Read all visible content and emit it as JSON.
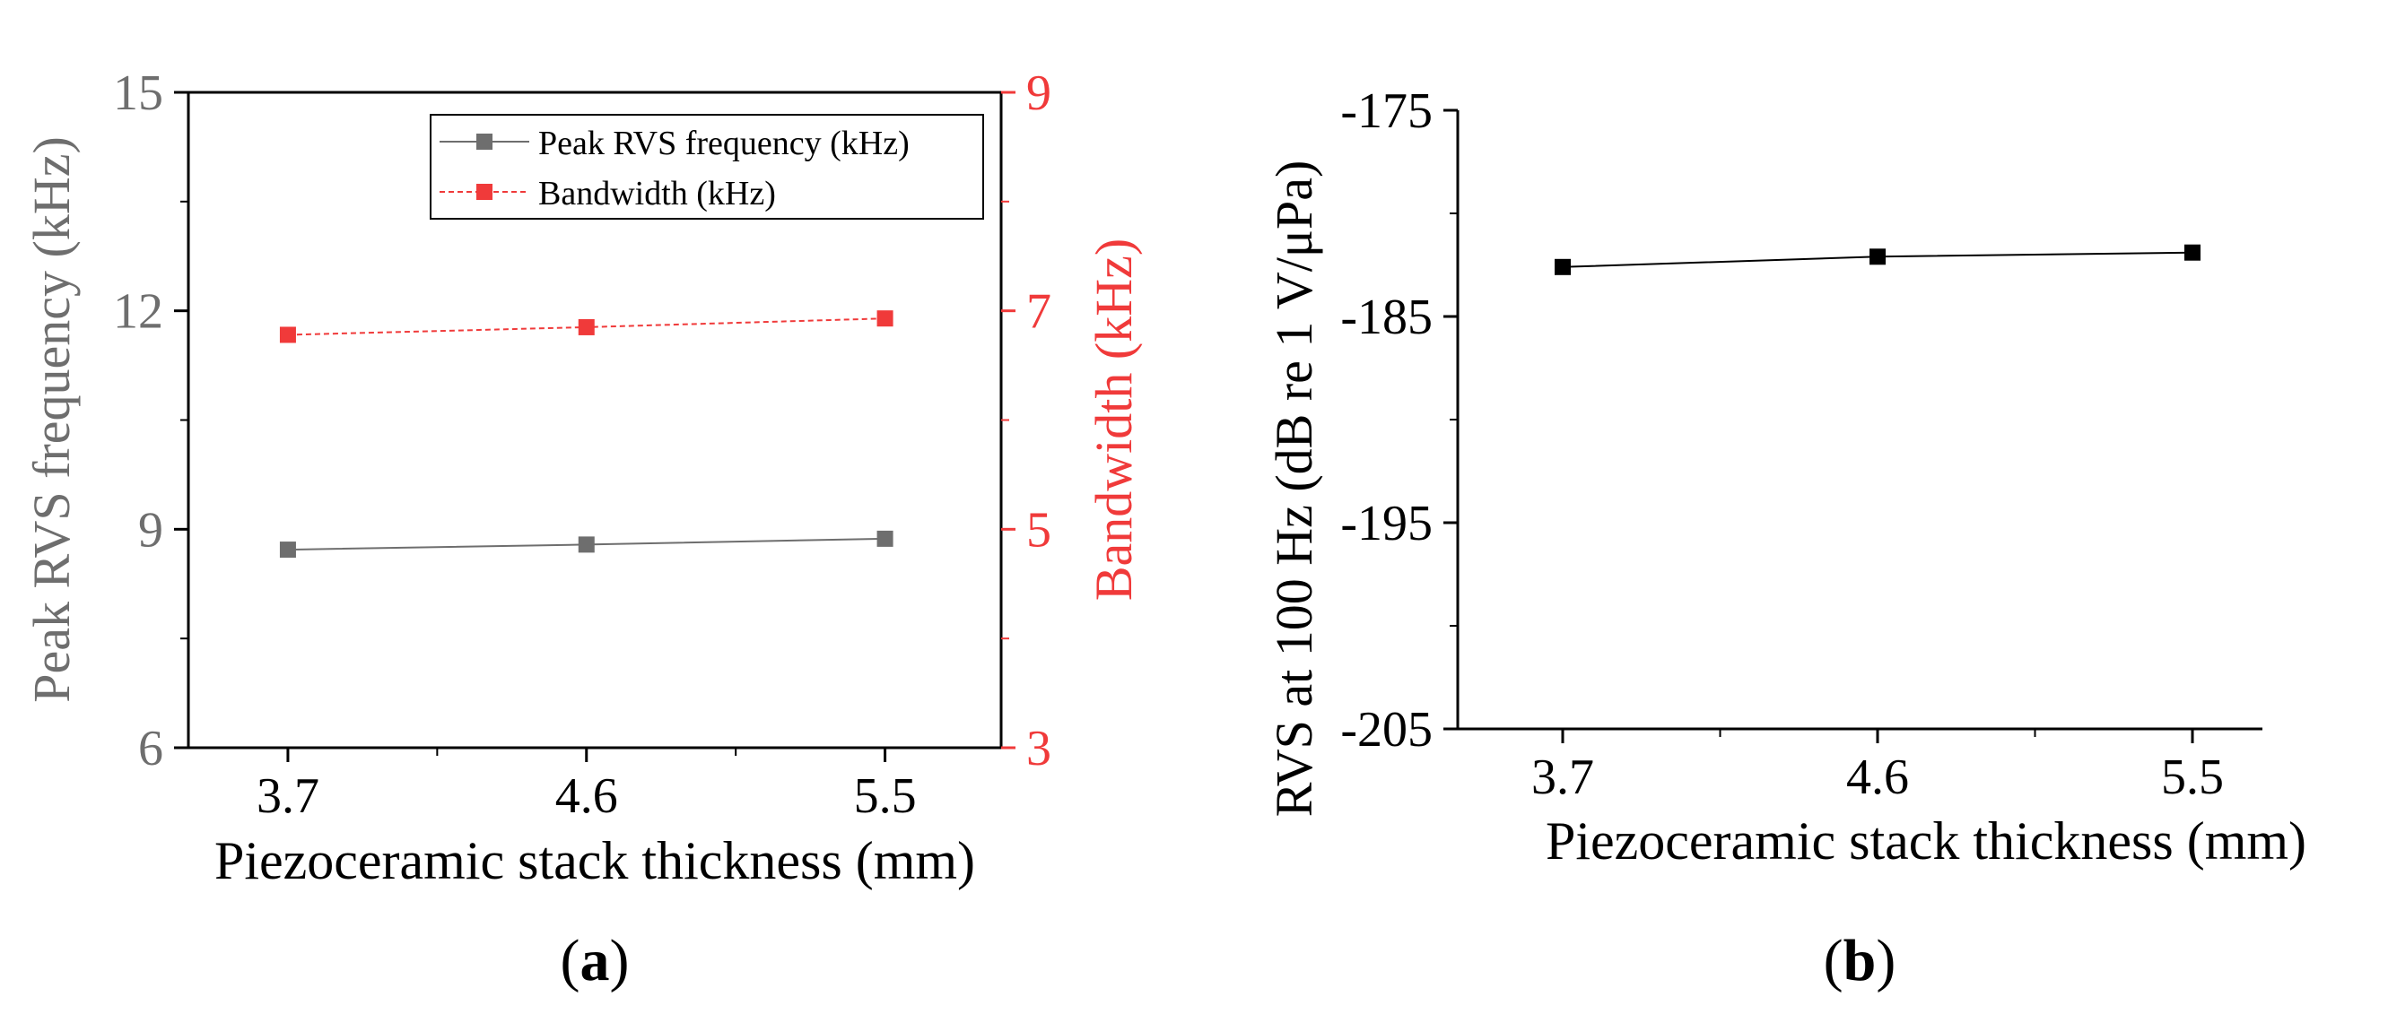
{
  "colors": {
    "gray": "#6e6e6e",
    "red": "#f03a3a",
    "black": "#000000"
  },
  "chart_data": [
    {
      "panel": "a",
      "caption_open": "(",
      "caption_letter": "a",
      "caption_close": ")",
      "type": "line",
      "xlabel": "Piezoceramic stack thickness (mm)",
      "ylabel": "Peak RVS frequency (kHz)",
      "y2label": "Bandwidth (kHz)",
      "x": [
        3.7,
        4.6,
        5.5
      ],
      "xticklabels": [
        "3.7",
        "4.6",
        "5.5"
      ],
      "xlim": [
        3.4,
        5.85
      ],
      "ylim": [
        6,
        15
      ],
      "yticks": [
        6,
        9,
        12,
        15
      ],
      "yticklabels": [
        "6",
        "9",
        "12",
        "15"
      ],
      "y2lim": [
        3,
        9
      ],
      "y2ticks": [
        3,
        5,
        7,
        9
      ],
      "y2ticklabels": [
        "3",
        "5",
        "7",
        "9"
      ],
      "legend_position": "top-right",
      "series": [
        {
          "name": "Peak RVS frequency (kHz)",
          "axis": "left",
          "color": "#6e6e6e",
          "line": "solid",
          "values": [
            8.72,
            8.79,
            8.87
          ]
        },
        {
          "name": "Bandwidth (kHz)",
          "axis": "right",
          "color": "#f03a3a",
          "line": "dashed",
          "values": [
            6.78,
            6.85,
            6.93
          ]
        }
      ]
    },
    {
      "panel": "b",
      "caption_open": "(",
      "caption_letter": "b",
      "caption_close": ")",
      "type": "line",
      "xlabel": "Piezoceramic stack thickness (mm)",
      "ylabel": "RVS at 100 Hz (dB re 1 V/μPa)",
      "x": [
        3.7,
        4.6,
        5.5
      ],
      "xticklabels": [
        "3.7",
        "4.6",
        "5.5"
      ],
      "xlim": [
        3.4,
        5.7
      ],
      "ylim": [
        -205,
        -175
      ],
      "yticks": [
        -205,
        -195,
        -185,
        -175
      ],
      "yticklabels": [
        "-205",
        "-195",
        "-185",
        "-175"
      ],
      "series": [
        {
          "name": "RVS at 100 Hz",
          "axis": "left",
          "color": "#000000",
          "line": "solid",
          "values": [
            -182.6,
            -182.1,
            -181.9
          ]
        }
      ]
    }
  ]
}
